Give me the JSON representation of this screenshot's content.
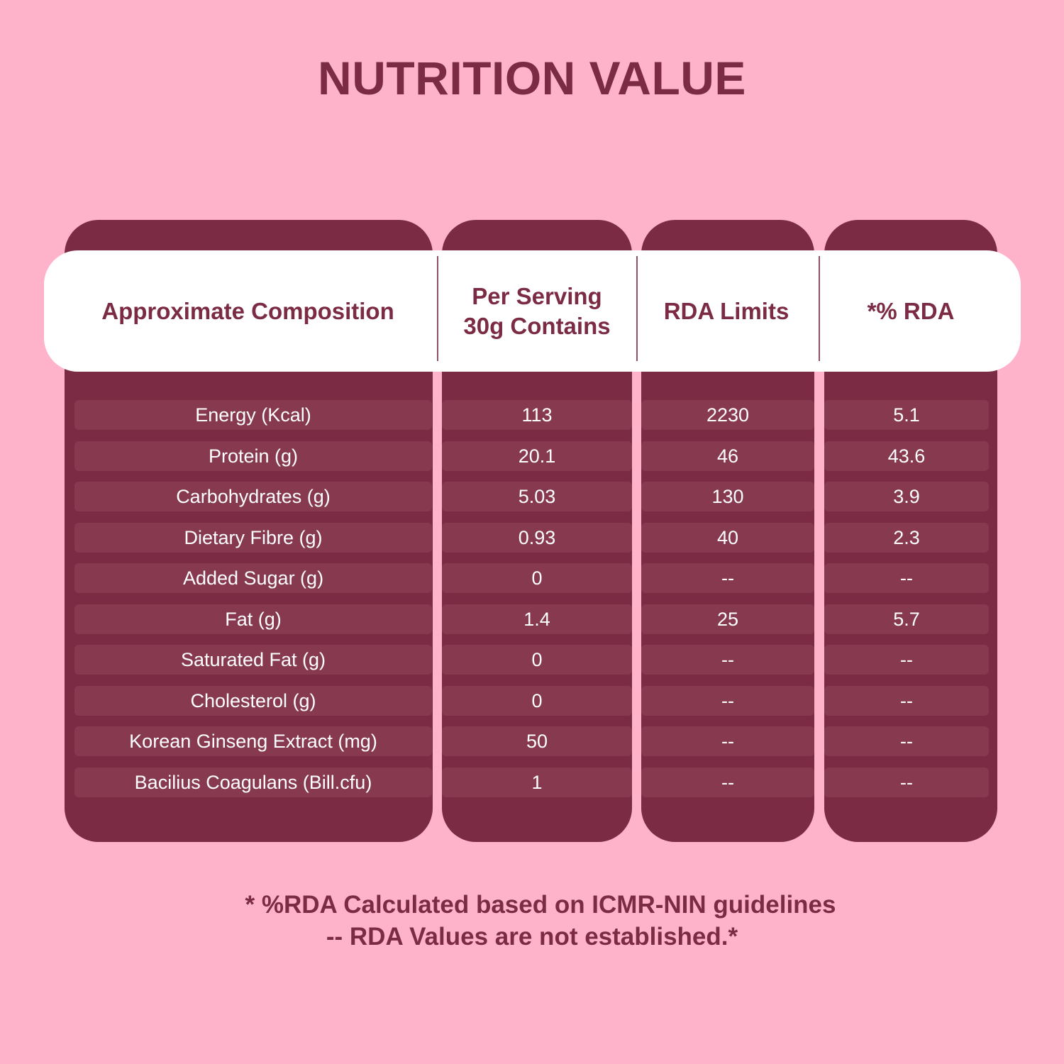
{
  "title": "NUTRITION VALUE",
  "table": {
    "headers": [
      "Approximate Composition",
      "Per Serving\n30g Contains",
      "RDA Limits",
      "*% RDA"
    ],
    "rows": [
      [
        "Energy (Kcal)",
        "113",
        "2230",
        "5.1"
      ],
      [
        "Protein (g)",
        "20.1",
        "46",
        "43.6"
      ],
      [
        "Carbohydrates (g)",
        "5.03",
        "130",
        "3.9"
      ],
      [
        "Dietary Fibre (g)",
        "0.93",
        "40",
        "2.3"
      ],
      [
        "Added Sugar (g)",
        "0",
        "--",
        "--"
      ],
      [
        "Fat (g)",
        "1.4",
        "25",
        "5.7"
      ],
      [
        "Saturated Fat (g)",
        "0",
        "--",
        "--"
      ],
      [
        "Cholesterol (g)",
        "0",
        "--",
        "--"
      ],
      [
        "Korean Ginseng Extract (mg)",
        "50",
        "--",
        "--"
      ],
      [
        "Bacilius Coagulans (Bill.cfu)",
        "1",
        "--",
        "--"
      ]
    ]
  },
  "footnotes": {
    "line1": "* %RDA Calculated based on ICMR-NIN guidelines",
    "line2": "-- RDA Values are not established.*"
  },
  "colors": {
    "background": "#ffb3cb",
    "column": "#7b2c44",
    "row": "#86394f",
    "header": "#ffffff",
    "text_dark": "#7b2c44",
    "text_light": "#ffffff"
  }
}
